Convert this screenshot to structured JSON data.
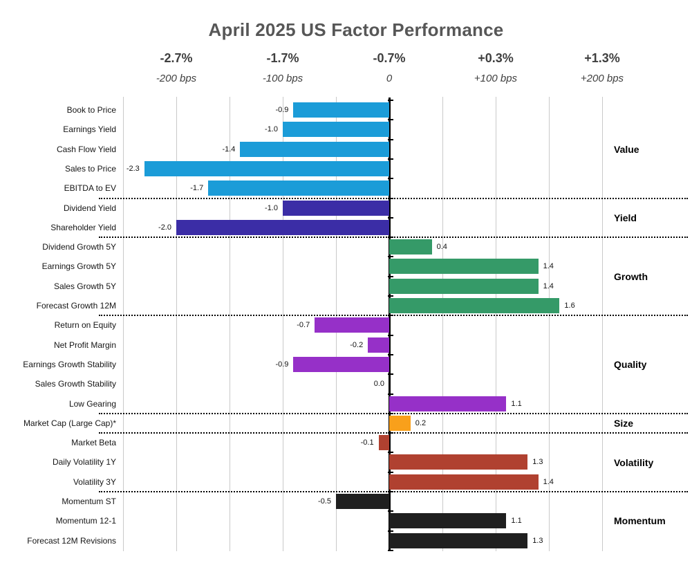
{
  "title": "April 2025 US Factor Performance",
  "x_axis": {
    "ticks": [
      {
        "pct": "-2.7%",
        "bps": "-200 bps",
        "value": -2
      },
      {
        "pct": "-1.7%",
        "bps": "-100 bps",
        "value": -1
      },
      {
        "pct": "-0.7%",
        "bps": "0",
        "value": 0
      },
      {
        "pct": "+0.3%",
        "bps": "+100 bps",
        "value": 1
      },
      {
        "pct": "+1.3%",
        "bps": "+200 bps",
        "value": 2
      }
    ]
  },
  "chart_data": {
    "type": "bar",
    "orientation": "horizontal",
    "title": "April 2025 US Factor Performance",
    "value_unit": "relative performance, 100 bps = 1.0",
    "xlim": [
      -2.55,
      2.6
    ],
    "gridline_step": 0.5,
    "grid": true,
    "groups": [
      {
        "name": "Value",
        "color": "#1B9CD8",
        "items": [
          {
            "label": "Book to Price",
            "value": -0.9
          },
          {
            "label": "Earnings Yield",
            "value": -1.0
          },
          {
            "label": "Cash Flow Yield",
            "value": -1.4
          },
          {
            "label": "Sales to Price",
            "value": -2.3
          },
          {
            "label": "EBITDA to EV",
            "value": -1.7
          }
        ]
      },
      {
        "name": "Yield",
        "color": "#3B2DA6",
        "items": [
          {
            "label": "Dividend Yield",
            "value": -1.0
          },
          {
            "label": "Shareholder Yield",
            "value": -2.0
          }
        ]
      },
      {
        "name": "Growth",
        "color": "#359A68",
        "items": [
          {
            "label": "Dividend Growth 5Y",
            "value": 0.4
          },
          {
            "label": "Earnings Growth 5Y",
            "value": 1.4
          },
          {
            "label": "Sales Growth 5Y",
            "value": 1.4
          },
          {
            "label": "Forecast Growth 12M",
            "value": 1.6
          }
        ]
      },
      {
        "name": "Quality",
        "color": "#9630C8",
        "items": [
          {
            "label": "Return on Equity",
            "value": -0.7
          },
          {
            "label": "Net Profit Margin",
            "value": -0.2
          },
          {
            "label": "Earnings Growth Stability",
            "value": -0.9
          },
          {
            "label": "Sales Growth Stability",
            "value": 0.0
          },
          {
            "label": "Low Gearing",
            "value": 1.1
          }
        ]
      },
      {
        "name": "Size",
        "color": "#F9A01B",
        "items": [
          {
            "label": "Market Cap (Large Cap)*",
            "value": 0.2
          }
        ]
      },
      {
        "name": "Volatility",
        "color": "#B04130",
        "items": [
          {
            "label": "Market Beta",
            "value": -0.1
          },
          {
            "label": "Daily Volatility 1Y",
            "value": 1.3
          },
          {
            "label": "Volatility 3Y",
            "value": 1.4
          }
        ]
      },
      {
        "name": "Momentum",
        "color": "#1F1F1F",
        "items": [
          {
            "label": "Momentum ST",
            "value": -0.5
          },
          {
            "label": "Momentum 12-1",
            "value": 1.1
          },
          {
            "label": "Forecast 12M Revisions",
            "value": 1.3
          }
        ]
      }
    ]
  }
}
